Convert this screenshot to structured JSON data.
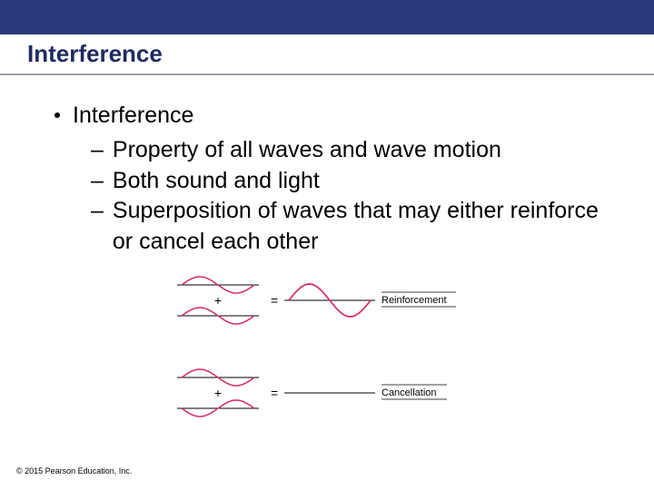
{
  "header": {
    "bar_color": "#2a3a7a",
    "title": "Interference",
    "title_color": "#1f2a5f",
    "title_underline_color": "#9aa0b0"
  },
  "content": {
    "main_bullet": "Interference",
    "sub_bullets": [
      "Property of all waves and wave motion",
      "Both sound and light",
      "Superposition of waves that may either reinforce or cancel each other"
    ]
  },
  "diagram": {
    "type": "infographic",
    "wave_color": "#d6336c",
    "line_color": "#000000",
    "text_color": "#000000",
    "plus_symbol": "+",
    "equals_symbol": "=",
    "rows": [
      {
        "label": "Reinforcement",
        "phase": "in",
        "result_amp": 18
      },
      {
        "label": "Cancellation",
        "phase": "out",
        "result_amp": 0
      }
    ],
    "small_amp": 9,
    "wave_width": 80,
    "result_width": 90,
    "fontsize_label": 11,
    "fontsize_symbol": 14
  },
  "footer": {
    "copyright": "© 2015 Pearson Education, Inc."
  }
}
